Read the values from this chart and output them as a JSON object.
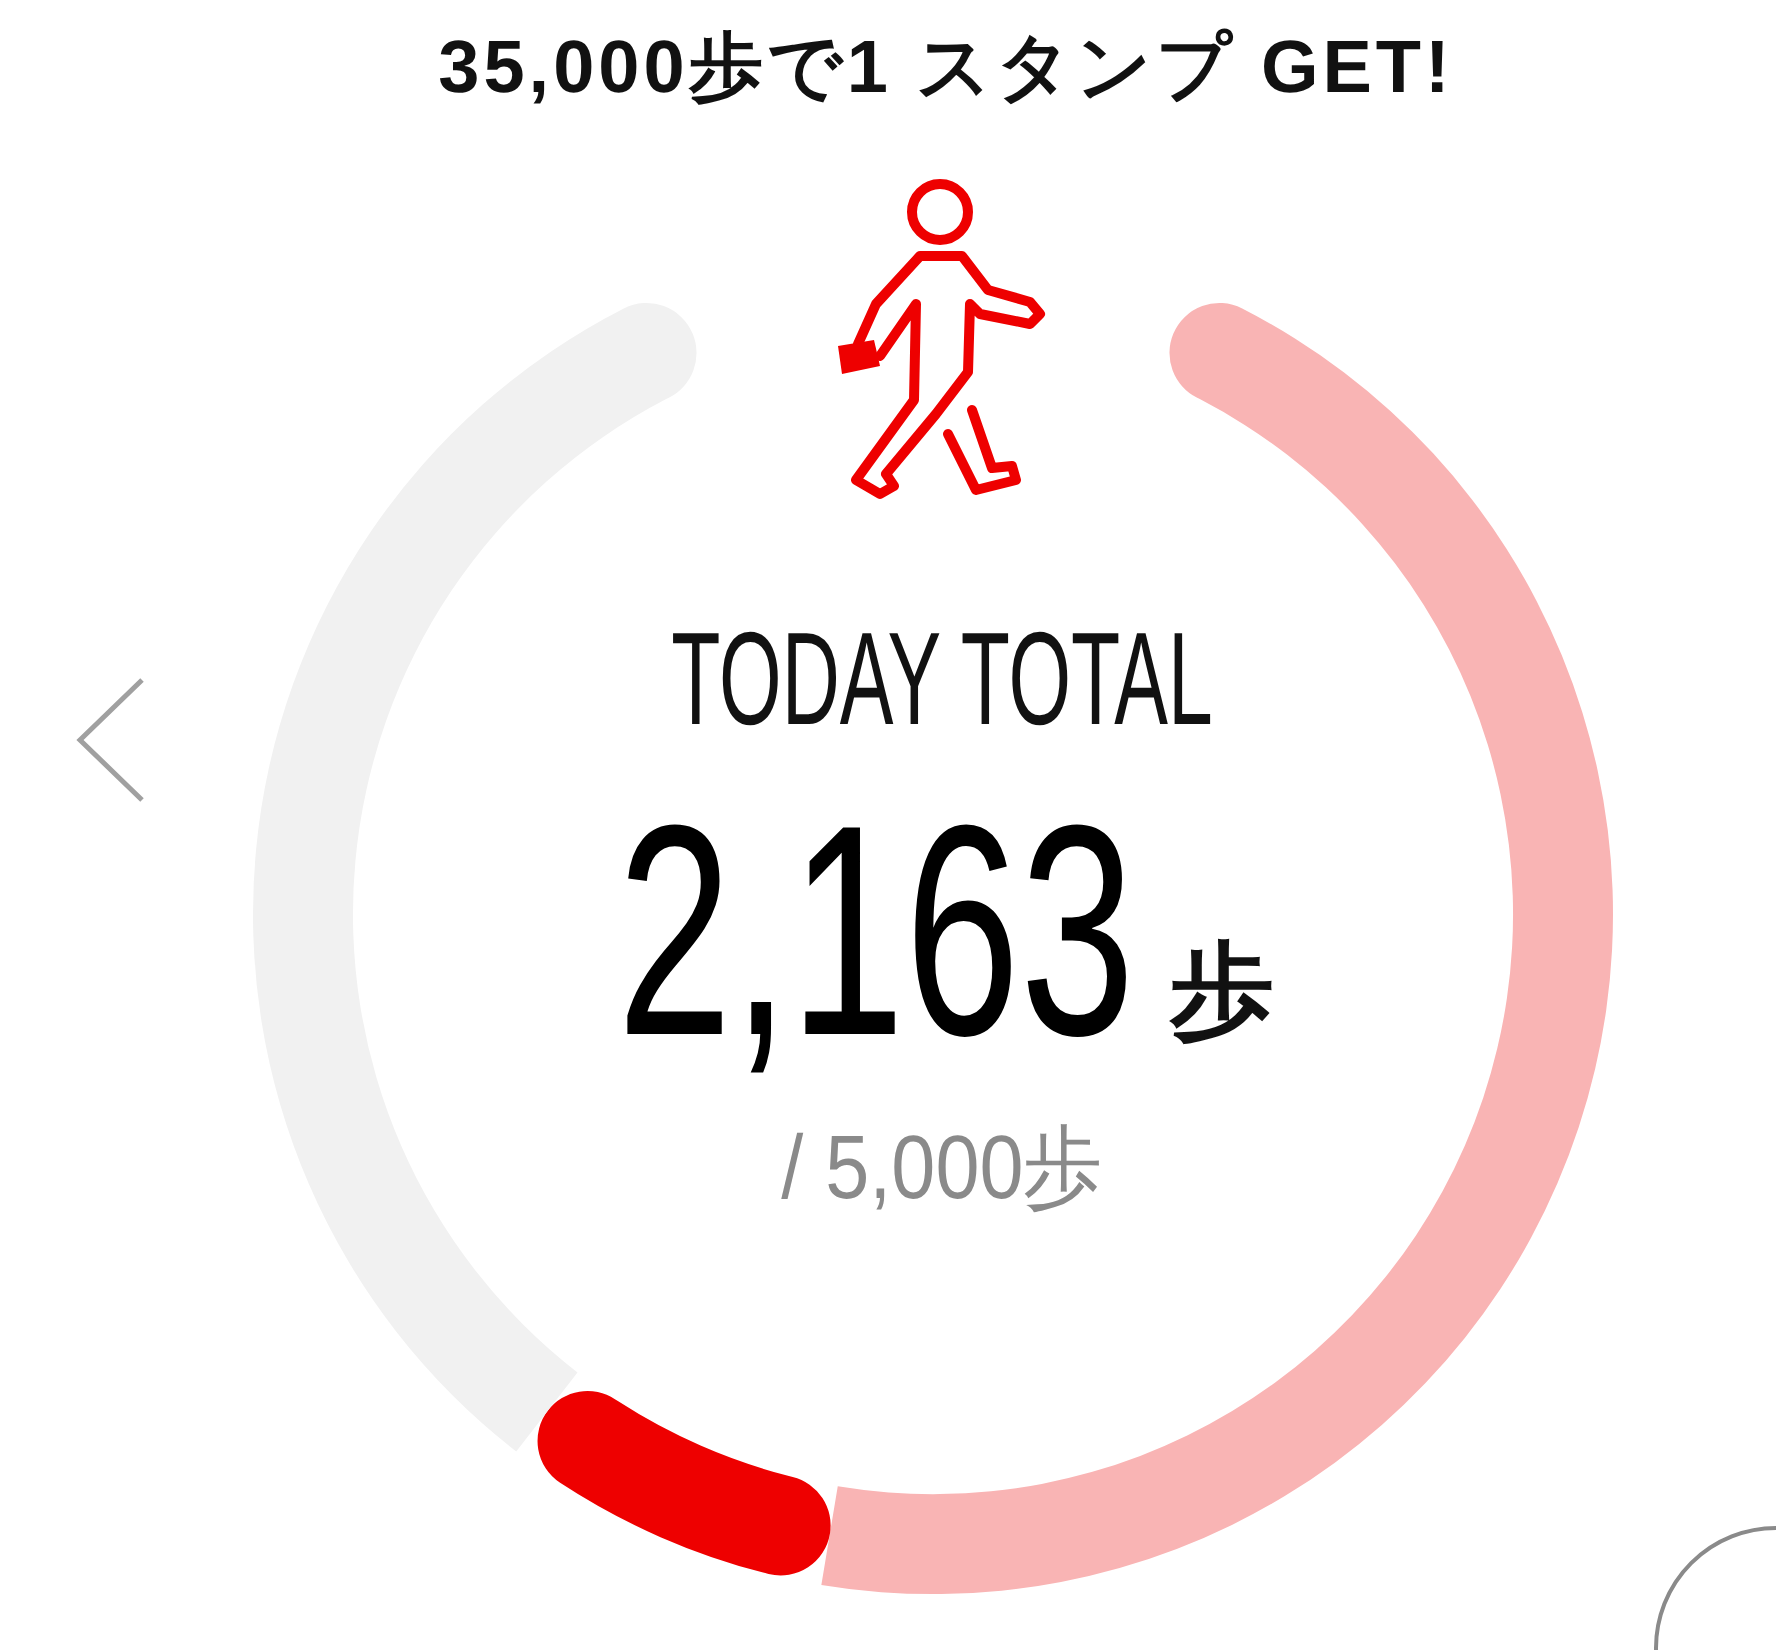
{
  "chart_data": {
    "type": "donut",
    "title": "35,000歩で1 スタンプ GET!",
    "categories": [
      null,
      null,
      null
    ],
    "values": [
      53,
      9,
      38
    ],
    "colors": [
      "#f9b4b4",
      "#ee0000",
      "#f1f1f1"
    ],
    "annotations": [
      "TODAY TOTAL",
      "2,163",
      "歩",
      "/ 5,000歩"
    ]
  }
}
